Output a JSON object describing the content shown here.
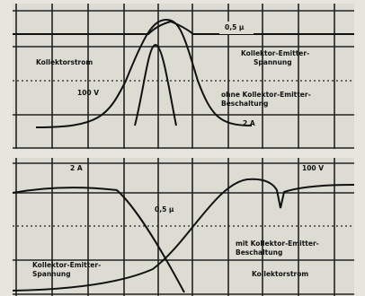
{
  "top_panel": {
    "time_label": "0,5 µ",
    "current_label": "Kollektorstrom",
    "voltage_label_1": "Kollektor-Emitter-",
    "voltage_label_2": "Spannung",
    "voltage_scale": "100 V",
    "condition_1": "ohne Kollektor-Emitter-",
    "condition_2": "Beschaltung",
    "current_scale": "2 A"
  },
  "bottom_panel": {
    "current_scale": "2 A",
    "voltage_scale": "100 V",
    "time_label": "0,5 µ",
    "condition_1": "mit Kollektor-Emitter-",
    "condition_2": "Beschaltung",
    "voltage_label_1": "Kollektor-Emitter-",
    "voltage_label_2": "Spannung",
    "current_label": "Kollektorstrom"
  }
}
